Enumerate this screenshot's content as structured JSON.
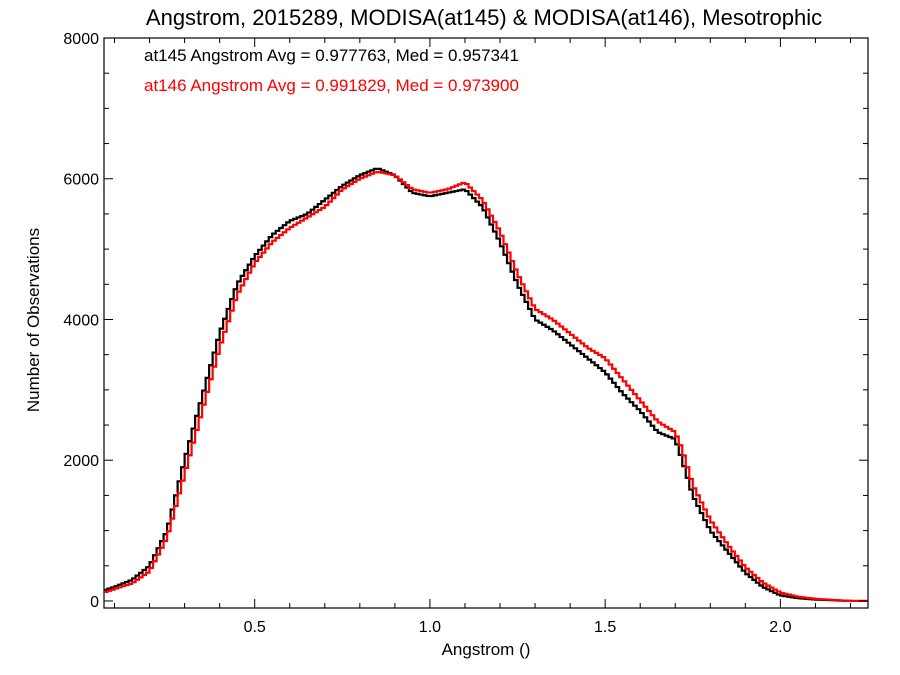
{
  "chart_data": {
    "type": "line",
    "title": "Angstrom, 2015289, MODISA(at145) & MODISA(at146), Mesotrophic",
    "xlabel": "Angstrom ()",
    "ylabel": "Number of Observations",
    "xlim": [
      0.07,
      2.25
    ],
    "ylim": [
      -100,
      8000
    ],
    "x_ticks": [
      0.5,
      1.0,
      1.5,
      2.0
    ],
    "x_tick_labels": [
      "0.5",
      "1.0",
      "1.5",
      "2.0"
    ],
    "y_ticks": [
      0,
      2000,
      4000,
      6000,
      8000
    ],
    "y_tick_labels": [
      "0",
      "2000",
      "4000",
      "6000",
      "8000"
    ],
    "grid": false,
    "annotations": [
      {
        "text": "at145 Angstrom Avg = 0.977763, Med = 0.957341",
        "color": "#000000"
      },
      {
        "text": "at146 Angstrom Avg = 0.991829, Med = 0.973900",
        "color": "#ff0000"
      }
    ],
    "series": [
      {
        "color": "#000000",
        "x": [
          0.07,
          0.1,
          0.15,
          0.2,
          0.25,
          0.3,
          0.35,
          0.4,
          0.45,
          0.5,
          0.55,
          0.6,
          0.65,
          0.7,
          0.75,
          0.8,
          0.85,
          0.9,
          0.95,
          1.0,
          1.05,
          1.1,
          1.15,
          1.2,
          1.25,
          1.3,
          1.35,
          1.4,
          1.45,
          1.5,
          1.55,
          1.6,
          1.65,
          1.7,
          1.72,
          1.75,
          1.8,
          1.85,
          1.9,
          1.95,
          2.0,
          2.05,
          2.1,
          2.15,
          2.2,
          2.25
        ],
        "y": [
          150,
          200,
          300,
          500,
          1000,
          2000,
          2900,
          3800,
          4500,
          4900,
          5200,
          5400,
          5500,
          5700,
          5900,
          6050,
          6150,
          6050,
          5800,
          5750,
          5800,
          5850,
          5600,
          5100,
          4500,
          4000,
          3850,
          3650,
          3450,
          3250,
          2950,
          2700,
          2400,
          2300,
          2000,
          1500,
          1000,
          700,
          400,
          200,
          80,
          40,
          20,
          10,
          0,
          0
        ]
      },
      {
        "color": "#ff0000",
        "x": [
          0.07,
          0.1,
          0.15,
          0.2,
          0.25,
          0.3,
          0.35,
          0.4,
          0.45,
          0.5,
          0.55,
          0.6,
          0.65,
          0.7,
          0.75,
          0.8,
          0.85,
          0.9,
          0.95,
          1.0,
          1.05,
          1.1,
          1.15,
          1.2,
          1.25,
          1.3,
          1.35,
          1.4,
          1.45,
          1.5,
          1.55,
          1.6,
          1.65,
          1.7,
          1.72,
          1.75,
          1.8,
          1.85,
          1.9,
          1.95,
          2.0,
          2.05,
          2.1,
          2.15,
          2.2,
          2.25
        ],
        "y": [
          120,
          170,
          250,
          420,
          900,
          1800,
          2700,
          3600,
          4350,
          4800,
          5100,
          5300,
          5450,
          5600,
          5850,
          6000,
          6100,
          6050,
          5850,
          5800,
          5850,
          5950,
          5700,
          5250,
          4650,
          4150,
          4000,
          3800,
          3600,
          3450,
          3150,
          2850,
          2550,
          2400,
          2150,
          1650,
          1150,
          800,
          480,
          260,
          120,
          60,
          30,
          15,
          0,
          0
        ]
      }
    ]
  }
}
